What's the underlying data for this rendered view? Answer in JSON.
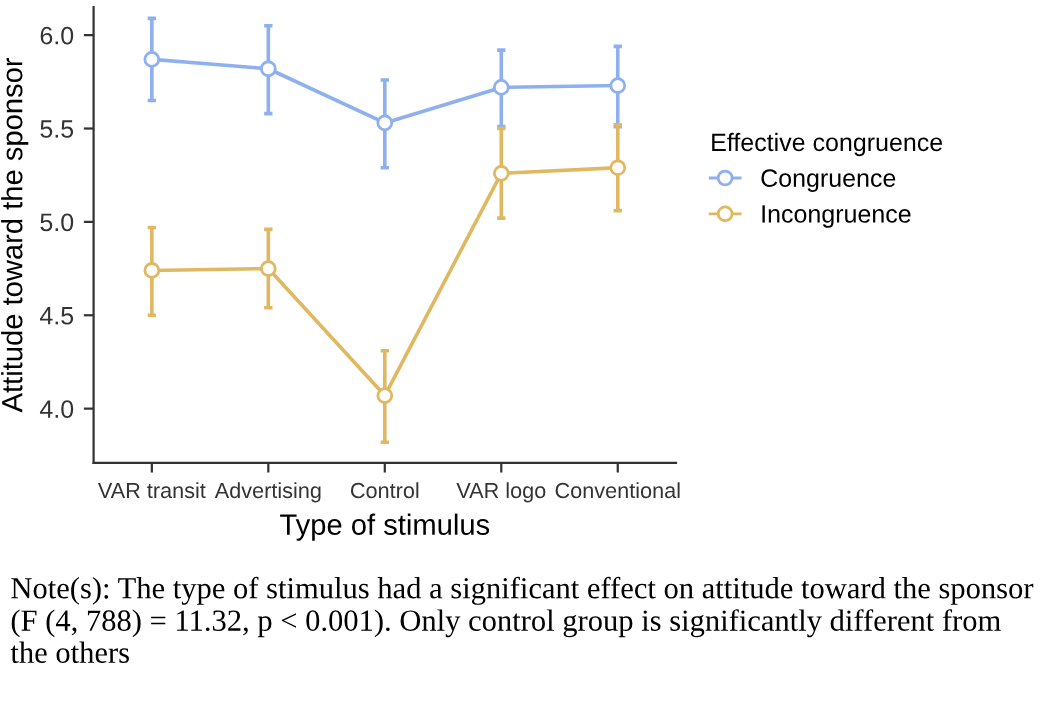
{
  "chart_data": {
    "type": "line",
    "xlabel": "Type of stimulus",
    "ylabel": "Attitude toward the sponsor",
    "legend_title": "Effective congruence",
    "categories": [
      "VAR transit",
      "Advertising",
      "Control",
      "VAR logo",
      "Conventional"
    ],
    "series": [
      {
        "name": "Congruence",
        "color": "#8fb0ef",
        "values": [
          5.87,
          5.82,
          5.53,
          5.72,
          5.73
        ],
        "errors": [
          [
            5.65,
            6.09
          ],
          [
            5.58,
            6.05
          ],
          [
            5.29,
            5.76
          ],
          [
            5.51,
            5.92
          ],
          [
            5.51,
            5.94
          ]
        ]
      },
      {
        "name": "Incongruence",
        "color": "#e0b861",
        "values": [
          4.74,
          4.75,
          4.07,
          5.26,
          5.29
        ],
        "errors": [
          [
            4.5,
            4.97
          ],
          [
            4.54,
            4.96
          ],
          [
            3.82,
            4.31
          ],
          [
            5.02,
            5.5
          ],
          [
            5.06,
            5.52
          ]
        ]
      }
    ],
    "ylim": [
      3.71,
      6.15
    ],
    "yticks": [
      {
        "value": 4,
        "label": "4.0"
      },
      {
        "value": 4.5,
        "label": "4.5"
      },
      {
        "value": 5,
        "label": "5.0"
      },
      {
        "value": 5.5,
        "label": "5.5"
      },
      {
        "value": 6,
        "label": "6.0"
      }
    ],
    "grid": false,
    "legend": "right",
    "marker": "circle",
    "line_style": "solid",
    "annotations": [
      "Note(s): The type of stimulus had a significant effect on attitude toward the sponsor (F (4, 788) = 11.32, p < 0.001). Only control group is significantly different from the others"
    ]
  }
}
